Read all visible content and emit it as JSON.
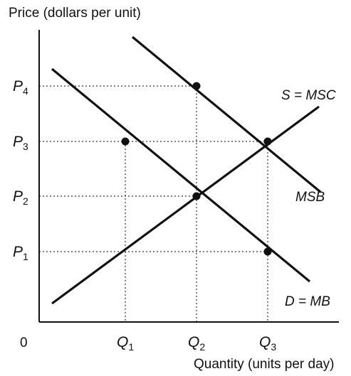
{
  "axes": {
    "y_title": "Price (dollars per unit)",
    "x_title": "Quantity (units per day)",
    "origin": "0"
  },
  "prices": [
    {
      "key": "P4",
      "letter": "P",
      "sub": "4"
    },
    {
      "key": "P3",
      "letter": "P",
      "sub": "3"
    },
    {
      "key": "P2",
      "letter": "P",
      "sub": "2"
    },
    {
      "key": "P1",
      "letter": "P",
      "sub": "1"
    }
  ],
  "quantities": [
    {
      "key": "Q1",
      "letter": "Q",
      "sub": "1"
    },
    {
      "key": "Q2",
      "letter": "Q",
      "sub": "2"
    },
    {
      "key": "Q3",
      "letter": "Q",
      "sub": "3"
    }
  ],
  "curves": {
    "supply": "S = MSC",
    "msb": "MSB",
    "demand": "D = MB"
  }
}
